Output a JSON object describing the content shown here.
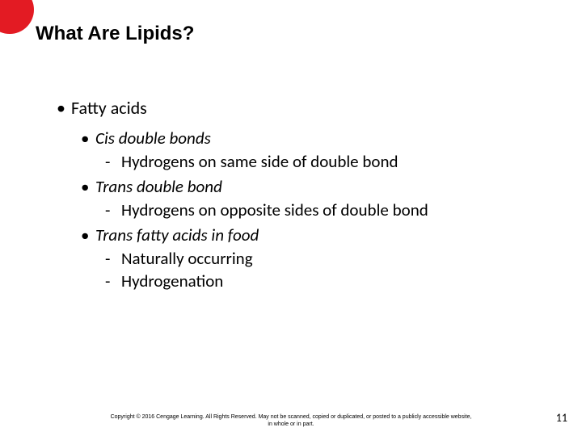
{
  "accent_color": "#e31b23",
  "title": "What Are Lipids?",
  "level1": {
    "bullet": "•",
    "text": "Fatty acids"
  },
  "items": [
    {
      "label": "Cis double bonds",
      "subs": [
        "Hydrogens on same side of double bond"
      ]
    },
    {
      "label": "Trans double bond",
      "subs": [
        "Hydrogens on opposite sides of double bond"
      ]
    },
    {
      "label": "Trans fatty acids in food",
      "subs": [
        "Naturally occurring",
        "Hydrogenation"
      ]
    }
  ],
  "bullet2": "•",
  "dash": "-",
  "footer_line1": "Copyright © 2016 Cengage Learning. All Rights Reserved. May not be scanned, copied or duplicated, or posted to a publicly accessible website,",
  "footer_line2": "in whole or in part.",
  "page_number": "11"
}
